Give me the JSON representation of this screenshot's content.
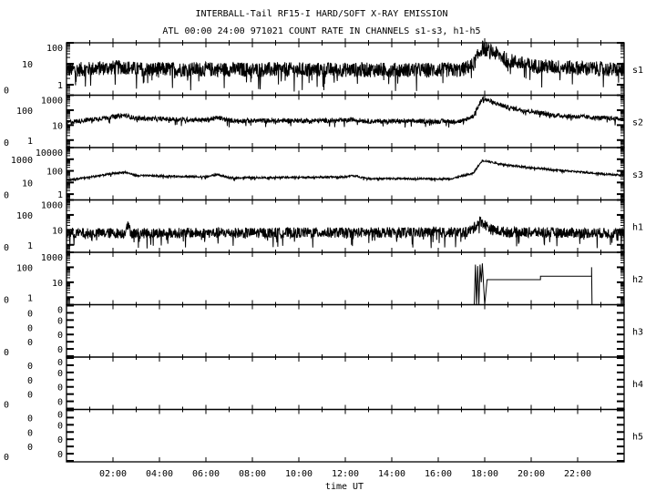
{
  "chart_data": {
    "type": "line",
    "title": "INTERBALL-Tail RF15-I HARD/SOFT X-RAY EMISSION",
    "subtitle": "ATL 00:00 24:00 971021  COUNT RATE IN CHANNELS s1-s3, h1-h5",
    "xlabel": "time UT",
    "xlim_hours": [
      0,
      24
    ],
    "x_tick_labels": [
      "02:00",
      "04:00",
      "06:00",
      "08:00",
      "10:00",
      "12:00",
      "14:00",
      "16:00",
      "18:00",
      "20:00",
      "22:00"
    ],
    "y_scale": "log",
    "grid": false,
    "color": "#000000",
    "panels": [
      {
        "name": "s1",
        "y_tick_labels": [
          "100",
          "10",
          "1",
          "0"
        ],
        "points": [
          [
            0,
            5
          ],
          [
            2.5,
            7
          ],
          [
            3,
            5.5
          ],
          [
            17,
            5
          ],
          [
            17.5,
            9
          ],
          [
            17.9,
            60
          ],
          [
            18.5,
            30
          ],
          [
            19,
            15
          ],
          [
            20,
            8
          ],
          [
            24,
            5
          ]
        ],
        "noise": "high"
      },
      {
        "name": "s2",
        "y_tick_labels": [
          "1000",
          "100",
          "10",
          "1",
          "0"
        ],
        "points": [
          [
            0,
            15
          ],
          [
            2.5,
            45
          ],
          [
            3,
            28
          ],
          [
            6,
            22
          ],
          [
            6.5,
            32
          ],
          [
            7,
            20
          ],
          [
            12,
            20
          ],
          [
            12.3,
            24
          ],
          [
            13,
            18
          ],
          [
            17,
            18
          ],
          [
            17.5,
            40
          ],
          [
            17.9,
            600
          ],
          [
            19,
            150
          ],
          [
            21,
            45
          ],
          [
            24,
            25
          ]
        ],
        "noise": "medium"
      },
      {
        "name": "s3",
        "y_tick_labels": [
          "10000",
          "1000",
          "100",
          "10",
          "1",
          "0"
        ],
        "points": [
          [
            0,
            15
          ],
          [
            2.5,
            80
          ],
          [
            3,
            40
          ],
          [
            6,
            30
          ],
          [
            6.5,
            50
          ],
          [
            7,
            25
          ],
          [
            12,
            30
          ],
          [
            12.3,
            40
          ],
          [
            13,
            22
          ],
          [
            16.5,
            20
          ],
          [
            17.5,
            60
          ],
          [
            17.9,
            800
          ],
          [
            19,
            300
          ],
          [
            21,
            120
          ],
          [
            24,
            40
          ]
        ],
        "noise": "low"
      },
      {
        "name": "h1",
        "y_tick_labels": [
          "1000",
          "100",
          "10",
          "1",
          "0"
        ],
        "points": [
          [
            0,
            6
          ],
          [
            2.5,
            6
          ],
          [
            2.6,
            25
          ],
          [
            2.8,
            6
          ],
          [
            17.2,
            7
          ],
          [
            17.5,
            12
          ],
          [
            17.8,
            40
          ],
          [
            18.3,
            10
          ],
          [
            19,
            7
          ],
          [
            24,
            6
          ]
        ],
        "noise": "high"
      },
      {
        "name": "h2",
        "y_tick_labels": [
          "1000",
          "100",
          "10",
          "1",
          "0"
        ],
        "points": [
          [
            0,
            0
          ],
          [
            17.55,
            0
          ],
          [
            17.6,
            150
          ],
          [
            17.65,
            0
          ],
          [
            17.7,
            120
          ],
          [
            17.75,
            0
          ],
          [
            17.8,
            150
          ],
          [
            17.85,
            10
          ],
          [
            17.9,
            180
          ],
          [
            18.0,
            0
          ],
          [
            18.1,
            15
          ],
          [
            20.4,
            15
          ],
          [
            20.4,
            25
          ],
          [
            22.6,
            25
          ],
          [
            22.6,
            100
          ],
          [
            22.62,
            0
          ],
          [
            24,
            0
          ]
        ],
        "noise": "none"
      },
      {
        "name": "h3",
        "y_tick_labels": [
          "0",
          "0",
          "0",
          "0",
          "0",
          "0",
          "0",
          "0"
        ],
        "points": [],
        "noise": "none"
      },
      {
        "name": "h4",
        "y_tick_labels": [
          "0",
          "0",
          "0",
          "0",
          "0",
          "0",
          "0",
          "0"
        ],
        "points": [],
        "noise": "none"
      },
      {
        "name": "h5",
        "y_tick_labels": [
          "0",
          "0",
          "0",
          "0",
          "0",
          "0",
          "0",
          "0"
        ],
        "points": [],
        "noise": "none"
      }
    ]
  }
}
